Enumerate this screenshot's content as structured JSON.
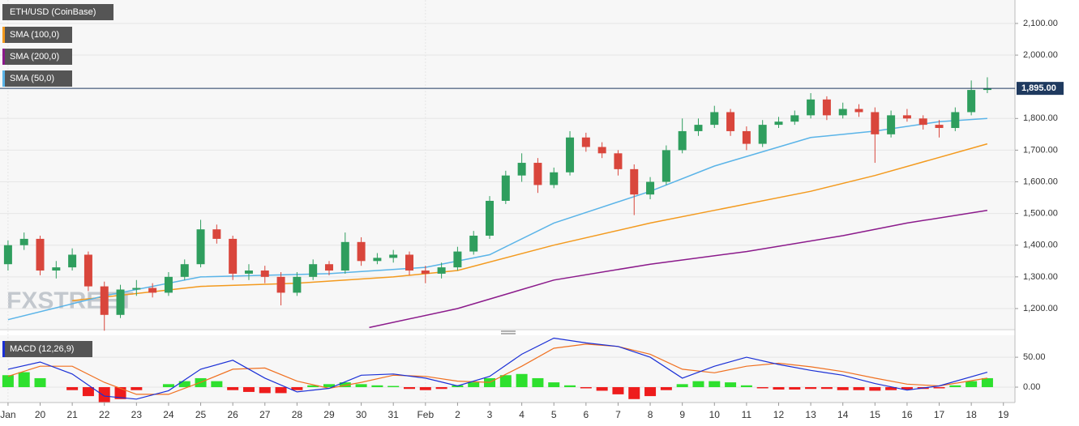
{
  "chart_data": {
    "type": "candlestick",
    "title": "ETH/USD (CoinBase)",
    "watermark": "FXSTREET",
    "up_color": "#2f9e5e",
    "down_color": "#d9463c",
    "x": [
      0,
      0.5,
      1,
      1.5,
      2,
      2.5,
      3,
      3.5,
      4,
      4.5,
      5,
      5.5,
      6,
      6.5,
      7,
      7.5,
      8,
      8.5,
      9,
      9.5,
      10,
      10.5,
      11,
      11.5,
      12,
      12.5,
      13,
      13.5,
      14,
      14.5,
      15,
      15.5,
      16,
      16.5,
      17,
      17.5,
      18,
      18.5,
      19,
      19.5,
      20,
      20.5,
      21,
      21.5,
      22,
      22.5,
      23,
      23.5,
      24,
      24.5,
      25,
      25.5,
      26,
      26.5,
      27,
      27.5,
      28,
      28.5,
      29,
      29.5,
      30,
      30.5
    ],
    "candles": [
      [
        1340,
        1415,
        1320,
        1400
      ],
      [
        1400,
        1440,
        1385,
        1420
      ],
      [
        1420,
        1430,
        1305,
        1320
      ],
      [
        1320,
        1350,
        1295,
        1330
      ],
      [
        1330,
        1390,
        1320,
        1370
      ],
      [
        1370,
        1380,
        1255,
        1270
      ],
      [
        1270,
        1285,
        1130,
        1180
      ],
      [
        1180,
        1275,
        1170,
        1260
      ],
      [
        1260,
        1290,
        1240,
        1265
      ],
      [
        1265,
        1280,
        1235,
        1250
      ],
      [
        1250,
        1315,
        1240,
        1300
      ],
      [
        1300,
        1355,
        1290,
        1340
      ],
      [
        1340,
        1480,
        1330,
        1450
      ],
      [
        1450,
        1465,
        1405,
        1420
      ],
      [
        1420,
        1430,
        1290,
        1310
      ],
      [
        1310,
        1340,
        1290,
        1320
      ],
      [
        1320,
        1335,
        1280,
        1300
      ],
      [
        1300,
        1315,
        1210,
        1250
      ],
      [
        1250,
        1315,
        1240,
        1300
      ],
      [
        1300,
        1355,
        1290,
        1340
      ],
      [
        1340,
        1350,
        1305,
        1320
      ],
      [
        1320,
        1440,
        1310,
        1410
      ],
      [
        1410,
        1425,
        1335,
        1350
      ],
      [
        1350,
        1375,
        1340,
        1360
      ],
      [
        1360,
        1385,
        1345,
        1370
      ],
      [
        1370,
        1380,
        1305,
        1320
      ],
      [
        1320,
        1335,
        1280,
        1310
      ],
      [
        1310,
        1345,
        1295,
        1330
      ],
      [
        1330,
        1395,
        1320,
        1380
      ],
      [
        1380,
        1445,
        1370,
        1430
      ],
      [
        1430,
        1555,
        1420,
        1540
      ],
      [
        1540,
        1635,
        1530,
        1620
      ],
      [
        1620,
        1690,
        1600,
        1660
      ],
      [
        1660,
        1675,
        1565,
        1590
      ],
      [
        1590,
        1645,
        1580,
        1630
      ],
      [
        1630,
        1760,
        1620,
        1740
      ],
      [
        1740,
        1755,
        1695,
        1710
      ],
      [
        1710,
        1725,
        1675,
        1690
      ],
      [
        1690,
        1700,
        1620,
        1640
      ],
      [
        1640,
        1655,
        1495,
        1560
      ],
      [
        1560,
        1615,
        1545,
        1600
      ],
      [
        1600,
        1715,
        1590,
        1700
      ],
      [
        1700,
        1800,
        1690,
        1760
      ],
      [
        1760,
        1800,
        1745,
        1780
      ],
      [
        1780,
        1840,
        1770,
        1820
      ],
      [
        1820,
        1830,
        1745,
        1760
      ],
      [
        1760,
        1775,
        1700,
        1720
      ],
      [
        1720,
        1795,
        1710,
        1780
      ],
      [
        1780,
        1805,
        1770,
        1790
      ],
      [
        1790,
        1825,
        1780,
        1810
      ],
      [
        1810,
        1880,
        1800,
        1860
      ],
      [
        1860,
        1870,
        1795,
        1810
      ],
      [
        1810,
        1850,
        1800,
        1830
      ],
      [
        1830,
        1845,
        1805,
        1820
      ],
      [
        1820,
        1835,
        1660,
        1750
      ],
      [
        1750,
        1825,
        1740,
        1810
      ],
      [
        1810,
        1830,
        1790,
        1800
      ],
      [
        1800,
        1810,
        1765,
        1780
      ],
      [
        1780,
        1795,
        1740,
        1770
      ],
      [
        1770,
        1835,
        1760,
        1820
      ],
      [
        1820,
        1920,
        1810,
        1890
      ],
      [
        1890,
        1930,
        1880,
        1895
      ]
    ],
    "series": [
      {
        "name": "SMA (100,0)",
        "color": "#f39a1e",
        "x": [
          2,
          6,
          9,
          12,
          14,
          17,
          20,
          22,
          25,
          27,
          30.5
        ],
        "values": [
          1225,
          1270,
          1280,
          1300,
          1320,
          1400,
          1470,
          1510,
          1570,
          1620,
          1720
        ]
      },
      {
        "name": "SMA (200,0)",
        "color": "#8b1a8b",
        "x": [
          11.25,
          14,
          17,
          20,
          23,
          26,
          28,
          30.5
        ],
        "values": [
          1140,
          1200,
          1290,
          1340,
          1380,
          1430,
          1470,
          1510
        ]
      },
      {
        "name": "SMA (50,0)",
        "color": "#5ab4e8",
        "x": [
          0,
          3,
          6,
          10,
          13,
          15,
          17,
          20,
          22,
          25,
          27,
          29,
          30.5
        ],
        "values": [
          1165,
          1240,
          1300,
          1310,
          1330,
          1370,
          1470,
          1570,
          1650,
          1740,
          1760,
          1790,
          1800
        ]
      }
    ],
    "last_price": {
      "value": 1895,
      "label": "1,895.00"
    },
    "xlim": [
      -0.25,
      31.36
    ],
    "ylim": [
      1136,
      2174
    ],
    "yticks": [
      {
        "value": 1200,
        "label": "1,200.00"
      },
      {
        "value": 1300,
        "label": "1,300.00"
      },
      {
        "value": 1400,
        "label": "1,400.00"
      },
      {
        "value": 1500,
        "label": "1,500.00"
      },
      {
        "value": 1600,
        "label": "1,600.00"
      },
      {
        "value": 1700,
        "label": "1,700.00"
      },
      {
        "value": 1800,
        "label": "1,800.00"
      },
      {
        "value": 2000,
        "label": "2,000.00"
      },
      {
        "value": 2100,
        "label": "2,100.00"
      }
    ],
    "xticks": [
      {
        "value": 0,
        "label": "Jan"
      },
      {
        "value": 1,
        "label": "20"
      },
      {
        "value": 2,
        "label": "21"
      },
      {
        "value": 3,
        "label": "22"
      },
      {
        "value": 4,
        "label": "23"
      },
      {
        "value": 5,
        "label": "24"
      },
      {
        "value": 6,
        "label": "25"
      },
      {
        "value": 7,
        "label": "26"
      },
      {
        "value": 8,
        "label": "27"
      },
      {
        "value": 9,
        "label": "28"
      },
      {
        "value": 10,
        "label": "29"
      },
      {
        "value": 11,
        "label": "30"
      },
      {
        "value": 12,
        "label": "31"
      },
      {
        "value": 13,
        "label": "Feb"
      },
      {
        "value": 14,
        "label": "2"
      },
      {
        "value": 15,
        "label": "3"
      },
      {
        "value": 16,
        "label": "4"
      },
      {
        "value": 17,
        "label": "5"
      },
      {
        "value": 18,
        "label": "6"
      },
      {
        "value": 19,
        "label": "7"
      },
      {
        "value": 20,
        "label": "8"
      },
      {
        "value": 21,
        "label": "9"
      },
      {
        "value": 22,
        "label": "10"
      },
      {
        "value": 23,
        "label": "11"
      },
      {
        "value": 24,
        "label": "12"
      },
      {
        "value": 25,
        "label": "13"
      },
      {
        "value": 26,
        "label": "14"
      },
      {
        "value": 27,
        "label": "15"
      },
      {
        "value": 28,
        "label": "16"
      },
      {
        "value": 29,
        "label": "17"
      },
      {
        "value": 30,
        "label": "18"
      },
      {
        "value": 31,
        "label": "19"
      }
    ],
    "macd": {
      "name": "MACD (12,26,9)",
      "y2lim": [
        -23,
        84
      ],
      "y2ticks": [
        {
          "value": 0,
          "label": "0.00"
        },
        {
          "value": 50,
          "label": "50.00"
        }
      ],
      "pos_color": "#2ee02e",
      "neg_color": "#ee1c1c",
      "histogram": [
        20,
        25,
        15,
        0,
        -5,
        -15,
        -25,
        -20,
        -5,
        0,
        5,
        10,
        15,
        10,
        -5,
        -8,
        -10,
        -10,
        -5,
        3,
        5,
        8,
        5,
        3,
        2,
        -3,
        -5,
        -3,
        3,
        8,
        15,
        20,
        22,
        15,
        8,
        3,
        -2,
        -6,
        -12,
        -20,
        -15,
        -5,
        5,
        10,
        10,
        8,
        3,
        -2,
        -4,
        -4,
        -3,
        -3,
        -5,
        -5,
        -6,
        -5,
        -4,
        -3,
        -2,
        3,
        10,
        15
      ],
      "line_x": [
        0,
        1,
        2,
        3,
        4,
        5,
        6,
        7,
        8,
        9,
        10,
        11,
        12,
        13,
        14,
        15,
        16,
        17,
        18,
        19,
        20,
        21,
        22,
        23,
        24,
        25,
        26,
        27,
        28,
        29,
        30.5
      ],
      "macd_color": "#1a2fd6",
      "signal_color": "#f07020",
      "macd_values": [
        30,
        42,
        22,
        -15,
        -20,
        -6,
        30,
        45,
        15,
        -8,
        -2,
        20,
        22,
        15,
        2,
        18,
        55,
        82,
        74,
        68,
        50,
        15,
        35,
        50,
        38,
        28,
        20,
        6,
        -5,
        2,
        25
      ],
      "signal_values": [
        18,
        35,
        35,
        8,
        -12,
        -12,
        8,
        30,
        32,
        10,
        -2,
        8,
        20,
        18,
        10,
        8,
        35,
        65,
        72,
        68,
        55,
        30,
        24,
        35,
        40,
        34,
        26,
        15,
        5,
        2,
        15
      ]
    }
  }
}
